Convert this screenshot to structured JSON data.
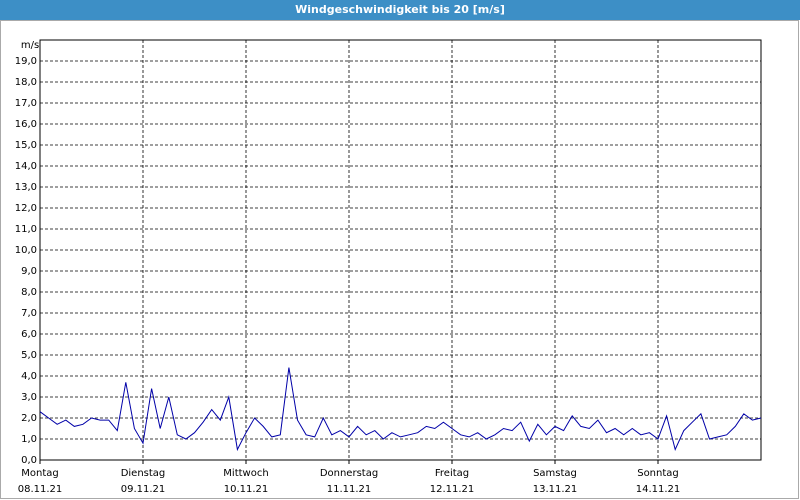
{
  "chart_data": {
    "type": "line",
    "title": "Windgeschwindigkeit bis 20 [m/s]",
    "y_label": "m/s",
    "xlim": [
      0,
      7
    ],
    "ylim": [
      0,
      20
    ],
    "grid": true,
    "color": "#0000a8",
    "xticks": [
      {
        "value": 0,
        "label": "Montag",
        "date": "08.11.21"
      },
      {
        "value": 1,
        "label": "Dienstag",
        "date": "09.11.21"
      },
      {
        "value": 2,
        "label": "Mittwoch",
        "date": "10.11.21"
      },
      {
        "value": 3,
        "label": "Donnerstag",
        "date": "11.11.21"
      },
      {
        "value": 4,
        "label": "Freitag",
        "date": "12.11.21"
      },
      {
        "value": 5,
        "label": "Samstag",
        "date": "13.11.21"
      },
      {
        "value": 6,
        "label": "Sonntag",
        "date": "14.11.21"
      }
    ],
    "yticks": [
      {
        "value": 0,
        "label": "0,0"
      },
      {
        "value": 1,
        "label": "1,0"
      },
      {
        "value": 2,
        "label": "2,0"
      },
      {
        "value": 3,
        "label": "3,0"
      },
      {
        "value": 4,
        "label": "4,0"
      },
      {
        "value": 5,
        "label": "5,0"
      },
      {
        "value": 6,
        "label": "6,0"
      },
      {
        "value": 7,
        "label": "7,0"
      },
      {
        "value": 8,
        "label": "8,0"
      },
      {
        "value": 9,
        "label": "9,0"
      },
      {
        "value": 10,
        "label": "10,0"
      },
      {
        "value": 11,
        "label": "11,0"
      },
      {
        "value": 12,
        "label": "12,0"
      },
      {
        "value": 13,
        "label": "13,0"
      },
      {
        "value": 14,
        "label": "14,0"
      },
      {
        "value": 15,
        "label": "15,0"
      },
      {
        "value": 16,
        "label": "16,0"
      },
      {
        "value": 17,
        "label": "17,0"
      },
      {
        "value": 18,
        "label": "18,0"
      },
      {
        "value": 19,
        "label": "19,0"
      }
    ],
    "values": [
      2.3,
      2.0,
      1.7,
      1.9,
      1.6,
      1.7,
      2.0,
      1.9,
      1.9,
      1.4,
      3.7,
      1.5,
      0.8,
      3.4,
      1.5,
      3.0,
      1.2,
      1.0,
      1.3,
      1.8,
      2.4,
      1.9,
      3.0,
      0.5,
      1.3,
      2.0,
      1.6,
      1.1,
      1.2,
      4.4,
      1.9,
      1.2,
      1.1,
      2.0,
      1.2,
      1.4,
      1.1,
      1.6,
      1.2,
      1.4,
      1.0,
      1.3,
      1.1,
      1.2,
      1.3,
      1.6,
      1.5,
      1.8,
      1.5,
      1.2,
      1.1,
      1.3,
      1.0,
      1.2,
      1.5,
      1.4,
      1.8,
      0.9,
      1.7,
      1.2,
      1.6,
      1.4,
      2.1,
      1.6,
      1.5,
      1.9,
      1.3,
      1.5,
      1.2,
      1.5,
      1.2,
      1.3,
      1.0,
      2.1,
      0.5,
      1.4,
      1.8,
      2.2,
      1.0,
      1.1,
      1.2,
      1.6,
      2.2,
      1.9,
      2.0
    ]
  }
}
